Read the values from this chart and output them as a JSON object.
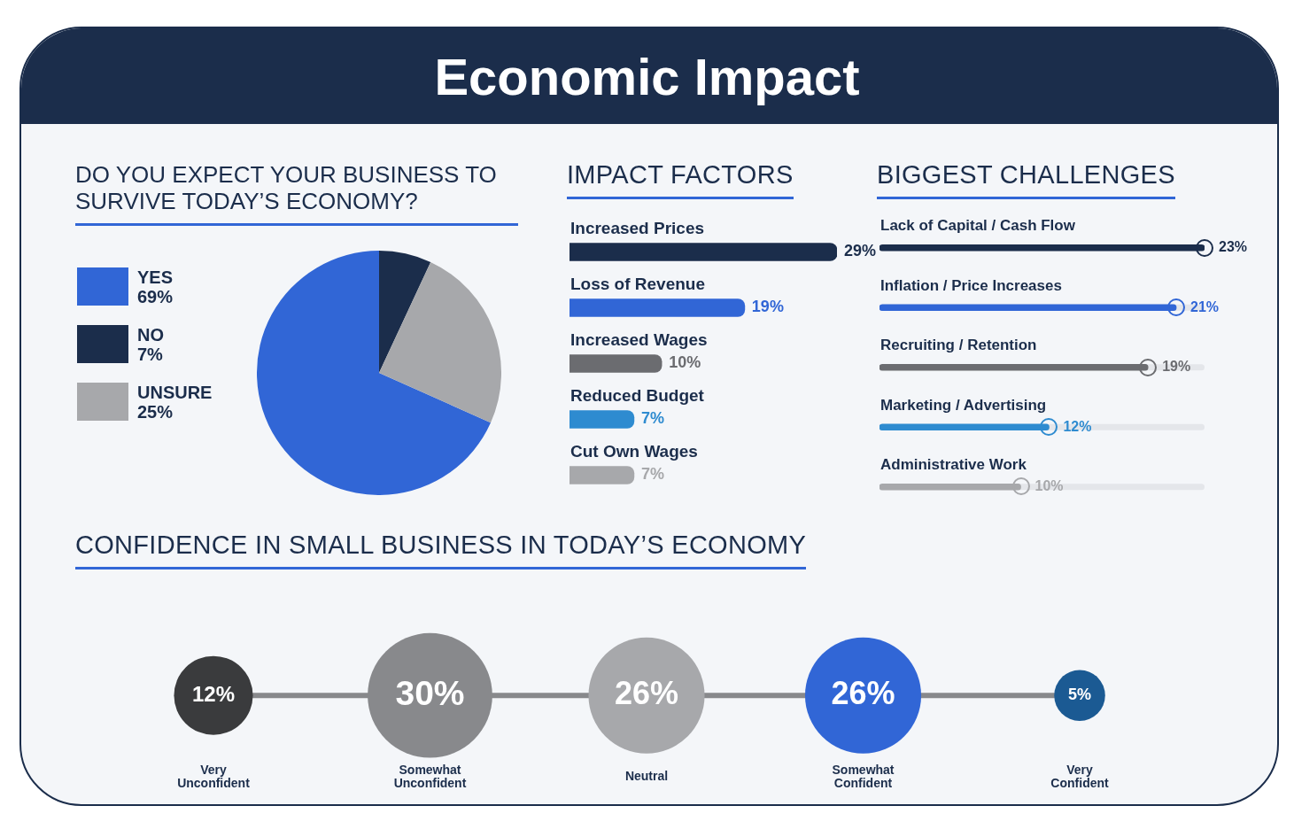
{
  "chart_data": [
    {
      "type": "pie",
      "title": "Economic Impact",
      "subtitle": "DO YOU EXPECT YOUR BUSINESS TO SURVIVE TODAY’S ECONOMY?",
      "categories": [
        "YES",
        "NO",
        "UNSURE"
      ],
      "values": [
        69,
        7,
        25
      ],
      "colors": [
        "#3166d6",
        "#1b2d4b",
        "#a7a8ab"
      ],
      "value_labels": [
        "69%",
        "7%",
        "25%"
      ],
      "legend": "left"
    },
    {
      "type": "bar",
      "orientation": "horizontal",
      "title": "IMPACT FACTORS",
      "categories": [
        "Increased Prices",
        "Loss of Revenue",
        "Increased Wages",
        "Reduced Budget",
        "Cut Own Wages"
      ],
      "values": [
        29,
        19,
        10,
        7,
        7
      ],
      "colors": [
        "#1b2d4b",
        "#3166d6",
        "#6b6c70",
        "#2e8bd0",
        "#a7a8ab"
      ],
      "value_labels": [
        "29%",
        "19%",
        "10%",
        "7%",
        "7%"
      ]
    },
    {
      "type": "bar",
      "orientation": "horizontal",
      "title": "BIGGEST CHALLENGES",
      "categories": [
        "Lack of Capital / Cash Flow",
        "Inflation / Price Increases",
        "Recruiting / Retention",
        "Marketing / Advertising",
        "Administrative Work"
      ],
      "values": [
        23,
        21,
        19,
        12,
        10
      ],
      "colors": [
        "#1b2d4b",
        "#3166d6",
        "#6b6c70",
        "#2e8bd0",
        "#a7a8ab"
      ],
      "value_labels": [
        "23%",
        "21%",
        "19%",
        "12%",
        "10%"
      ]
    },
    {
      "type": "other",
      "title": "CONFIDENCE IN SMALL BUSINESS IN TODAY’S ECONOMY",
      "categories": [
        "Very Unconfident",
        "Somewhat Unconfident",
        "Neutral",
        "Somewhat Confident",
        "Very Confident"
      ],
      "values": [
        12,
        30,
        26,
        26,
        5
      ],
      "colors": [
        "#3a3b3d",
        "#88898c",
        "#a7a8ab",
        "#3166d6",
        "#1b5a93"
      ],
      "value_labels": [
        "12%",
        "30%",
        "26%",
        "26%",
        "5%"
      ]
    }
  ]
}
